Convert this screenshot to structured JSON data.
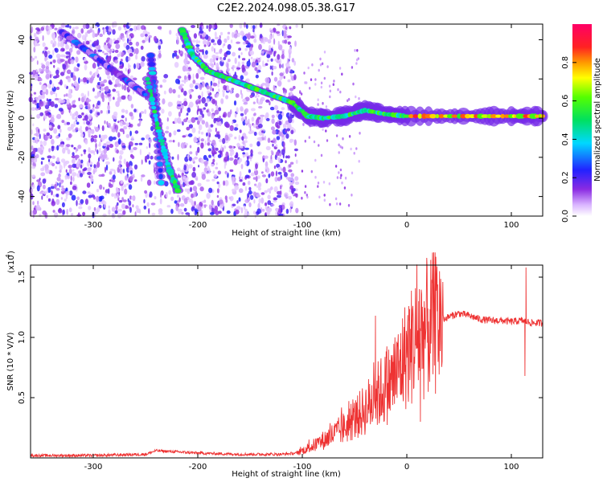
{
  "figure_title": "C2E2.2024.098.05.38.G17",
  "chart_data": [
    {
      "type": "heatmap",
      "title": "C2E2.2024.098.05.38.G17",
      "xlabel": "Height of straight line (km)",
      "ylabel": "Frequency (Hz)",
      "xlim": [
        -360,
        130
      ],
      "ylim": [
        -50,
        48
      ],
      "xticks": [
        -300,
        -200,
        -100,
        0,
        100
      ],
      "xtick_labels": [
        "-300",
        "-200",
        "-100",
        "0",
        "100"
      ],
      "yticks": [
        -40,
        -20,
        0,
        20,
        40
      ],
      "ytick_labels": [
        "-40",
        "-20",
        "0",
        "20",
        "40"
      ],
      "colorbar": {
        "label": "Normalized spectral amplitude",
        "range": [
          0,
          1
        ],
        "ticks": [
          0.0,
          0.2,
          0.4,
          0.6,
          0.8
        ],
        "tick_labels": [
          "0.0",
          "0.2",
          "0.4",
          "0.6",
          "0.8"
        ],
        "colormap": "rainbow (white-violet-blue-cyan-green-yellow-red-magenta)"
      },
      "features": [
        {
          "name": "steep streak A",
          "points": [
            [
              -245,
              32
            ],
            [
              -240,
              5
            ],
            [
              -235,
              -33
            ]
          ],
          "amplitude": 0.3
        },
        {
          "name": "steep streak B",
          "points": [
            [
              -248,
              20
            ],
            [
              -238,
              -5
            ],
            [
              -228,
              -25
            ],
            [
              -219,
              -37
            ]
          ],
          "amplitude": 0.45
        },
        {
          "name": "main chirp",
          "points": [
            [
              -215,
              45
            ],
            [
              -205,
              32
            ],
            [
              -190,
              24
            ],
            [
              -170,
              20
            ],
            [
              -150,
              16
            ],
            [
              -130,
              12
            ],
            [
              -110,
              8
            ],
            [
              -95,
              1
            ],
            [
              -80,
              0
            ],
            [
              -60,
              1
            ],
            [
              -40,
              4
            ],
            [
              -20,
              2
            ],
            [
              0,
              1
            ],
            [
              50,
              1
            ],
            [
              100,
              1
            ],
            [
              130,
              1
            ]
          ],
          "amplitude": 0.5
        },
        {
          "name": "diagonal faint streak",
          "points": [
            [
              -330,
              44
            ],
            [
              -300,
              32
            ],
            [
              -270,
              20
            ],
            [
              -250,
              12
            ]
          ],
          "amplitude": 0.2
        }
      ],
      "noise_region_x": [
        -360,
        -105
      ]
    },
    {
      "type": "line",
      "xlabel": "Height of straight line (km)",
      "ylabel": "SNR (10 * V/V)",
      "exponent_label": "(x10",
      "exponent_power": "4",
      "exponent_close": ")",
      "xlim": [
        -360,
        130
      ],
      "ylim": [
        0,
        1.6
      ],
      "xticks": [
        -300,
        -200,
        -100,
        0,
        100
      ],
      "xtick_labels": [
        "-300",
        "-200",
        "-100",
        "0",
        "100"
      ],
      "yticks": [
        0.5,
        1.0,
        1.5
      ],
      "ytick_labels": [
        "0.5",
        "1.0",
        "1.5"
      ],
      "series": [
        {
          "name": "SNR",
          "color": "#ee3333",
          "x": [
            -360,
            -300,
            -250,
            -240,
            -220,
            -200,
            -160,
            -120,
            -105,
            -95,
            -85,
            -75,
            -65,
            -55,
            -45,
            -35,
            -25,
            -15,
            -8,
            0,
            10,
            20,
            30,
            40,
            50,
            60,
            70,
            80,
            90,
            100,
            110,
            120,
            130
          ],
          "y": [
            0.02,
            0.02,
            0.03,
            0.06,
            0.05,
            0.04,
            0.03,
            0.03,
            0.04,
            0.08,
            0.12,
            0.17,
            0.22,
            0.28,
            0.36,
            0.45,
            0.55,
            0.63,
            0.72,
            0.88,
            1.0,
            1.08,
            1.13,
            1.17,
            1.2,
            1.18,
            1.15,
            1.14,
            1.14,
            1.13,
            1.14,
            1.12,
            1.12
          ]
        }
      ],
      "annotations": [
        {
          "x": 13,
          "y": 0.3,
          "kind": "dip"
        },
        {
          "x": 113,
          "y": 0.68,
          "kind": "dip"
        },
        {
          "x": 114,
          "y": 1.58,
          "kind": "spike"
        },
        {
          "x": 12,
          "y": 1.4,
          "kind": "spike"
        },
        {
          "x": -30,
          "y": 1.18,
          "kind": "spike"
        }
      ]
    }
  ]
}
